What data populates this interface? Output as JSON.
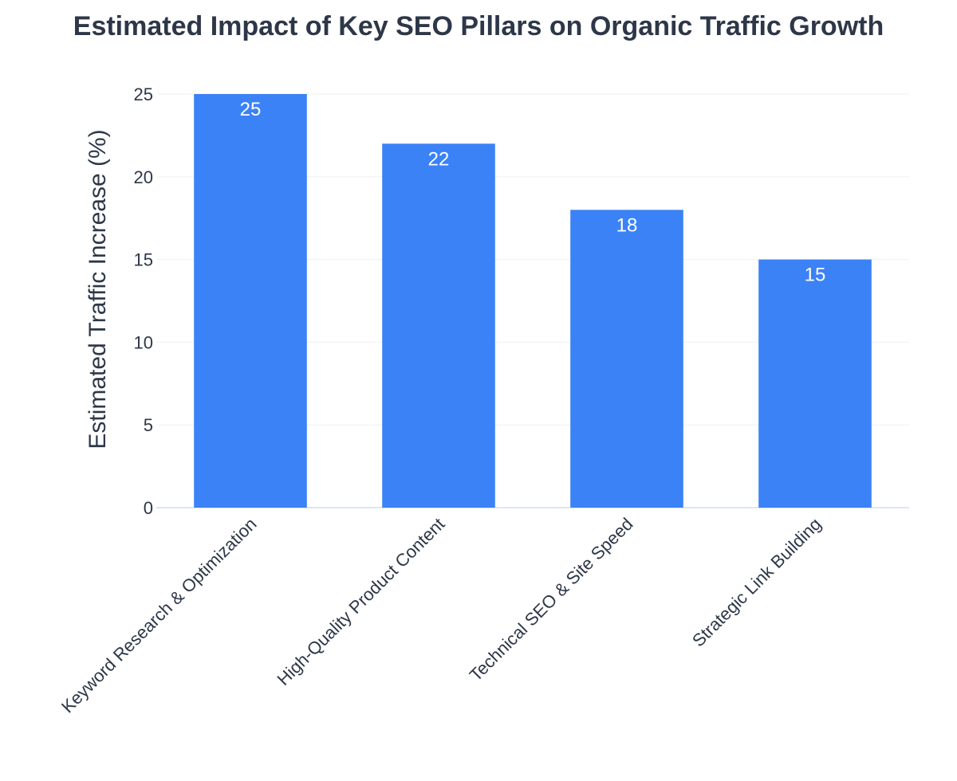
{
  "chart_data": {
    "type": "bar",
    "title": "Estimated Impact of Key SEO Pillars on Organic Traffic Growth",
    "xlabel": "",
    "ylabel": "Estimated Traffic Increase (%)",
    "categories": [
      "Keyword Research & Optimization",
      "High-Quality Product Content",
      "Technical SEO & Site Speed",
      "Strategic Link Building"
    ],
    "values": [
      25,
      22,
      18,
      15
    ],
    "data_labels": [
      "25",
      "22",
      "18",
      "15"
    ],
    "ylim": [
      0,
      25
    ],
    "yticks": [
      0,
      5,
      10,
      15,
      20,
      25
    ],
    "ytick_labels": [
      "0",
      "5",
      "10",
      "15",
      "20",
      "25"
    ],
    "grid": true,
    "legend": "none"
  },
  "colors": {
    "bar": "#3b82f6",
    "title": "#2d3748",
    "axis_text": "#2d3748",
    "grid": "#edf0f5",
    "axis_line": "#dfe6f1",
    "label_inside": "#ffffff"
  }
}
